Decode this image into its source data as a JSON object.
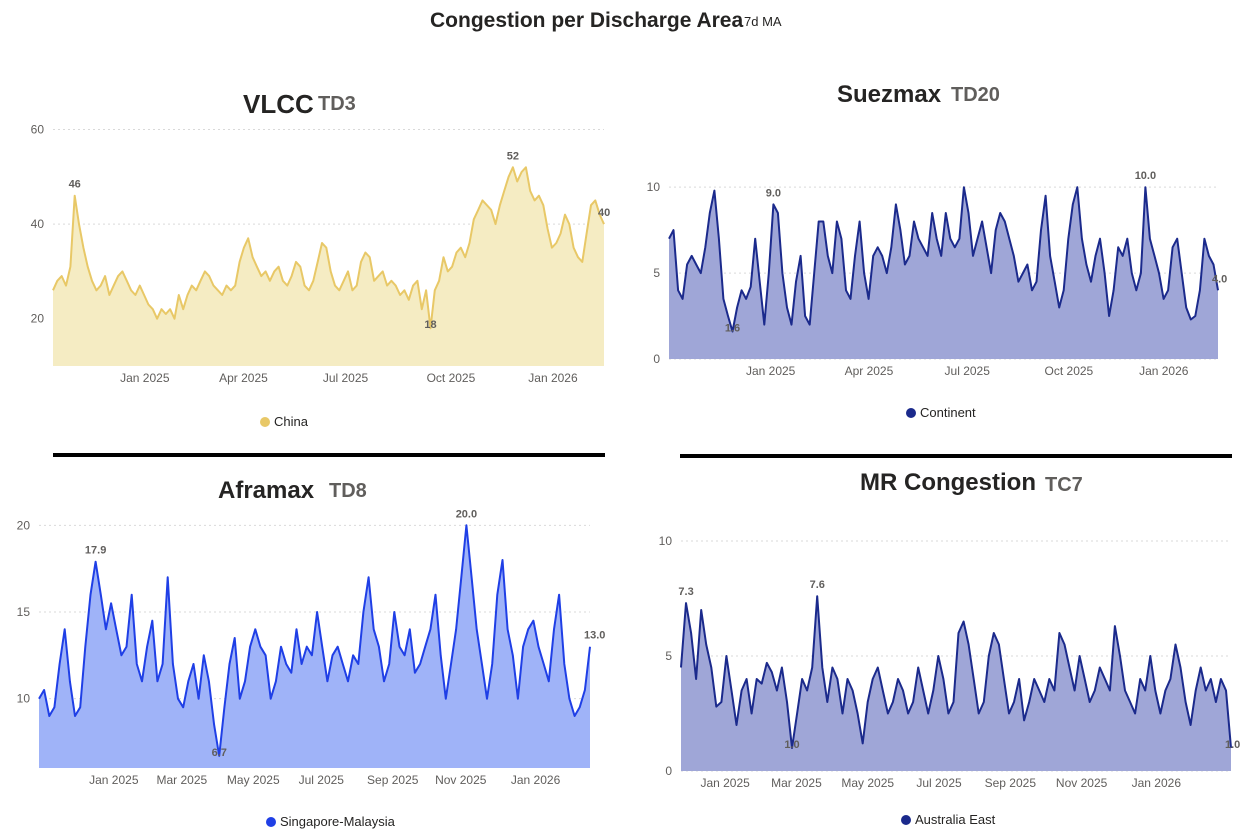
{
  "header": {
    "title": "Congestion per Discharge Area",
    "subtitle": "7d MA"
  },
  "chart_data": [
    {
      "id": "vlcc",
      "type": "area",
      "title": "VLCC",
      "code": "TD3",
      "series_name": "China",
      "color": "#e8c867",
      "fill": "#f5ecc3",
      "ylim": [
        10,
        62
      ],
      "yticks": [
        20,
        40,
        60
      ],
      "xlim": [
        0,
        16.2
      ],
      "xticks": [
        {
          "x": 2.7,
          "label": "Jan 2025"
        },
        {
          "x": 5.6,
          "label": "Apr 2025"
        },
        {
          "x": 8.6,
          "label": "Jul 2025"
        },
        {
          "x": 11.7,
          "label": "Oct 2025"
        },
        {
          "x": 14.7,
          "label": "Jan 2026"
        }
      ],
      "values": [
        26,
        28,
        29,
        27,
        31,
        46,
        40,
        35,
        31,
        28,
        26,
        27,
        29,
        25,
        27,
        29,
        30,
        28,
        26,
        25,
        27,
        25,
        23,
        22,
        20,
        22,
        21,
        22,
        20,
        25,
        22,
        25,
        27,
        26,
        28,
        30,
        29,
        27,
        26,
        25,
        27,
        26,
        27,
        32,
        35,
        37,
        33,
        31,
        29,
        30,
        28,
        30,
        31,
        28,
        27,
        29,
        32,
        31,
        27,
        26,
        28,
        32,
        36,
        35,
        30,
        27,
        26,
        28,
        30,
        26,
        27,
        32,
        34,
        33,
        28,
        29,
        30,
        27,
        28,
        27,
        25,
        26,
        24,
        27,
        28,
        22,
        26,
        18,
        26,
        28,
        33,
        30,
        31,
        34,
        35,
        33,
        36,
        41,
        43,
        45,
        44,
        43,
        40,
        44,
        47,
        50,
        52,
        49,
        51,
        52,
        47,
        45,
        46,
        44,
        39,
        35,
        36,
        38,
        42,
        40,
        35,
        33,
        32,
        38,
        44,
        45,
        42,
        40
      ],
      "annotations": [
        {
          "i": 5,
          "label": "46"
        },
        {
          "i": 87,
          "label": "18"
        },
        {
          "i": 106,
          "label": "52"
        },
        {
          "i": 127,
          "label": "40"
        }
      ]
    },
    {
      "id": "suezmax",
      "type": "area",
      "title": "Suezmax",
      "code": "TD20",
      "series_name": "Continent",
      "color": "#1b2a8c",
      "fill": "#9fa6d7",
      "ylim": [
        0,
        11
      ],
      "yticks": [
        0,
        5,
        10
      ],
      "xlim": [
        0,
        16.2
      ],
      "xticks": [
        {
          "x": 3.0,
          "label": "Jan 2025"
        },
        {
          "x": 5.9,
          "label": "Apr 2025"
        },
        {
          "x": 8.8,
          "label": "Jul 2025"
        },
        {
          "x": 11.8,
          "label": "Oct 2025"
        },
        {
          "x": 14.6,
          "label": "Jan 2026"
        }
      ],
      "values": [
        7.0,
        7.5,
        4.0,
        3.5,
        5.5,
        6.0,
        5.5,
        5.0,
        6.5,
        8.5,
        9.8,
        7.0,
        3.5,
        2.5,
        1.6,
        3.0,
        4.0,
        3.5,
        4.2,
        7.0,
        4.5,
        2.0,
        5.0,
        9.0,
        8.5,
        5.0,
        3.0,
        2.0,
        4.5,
        6.0,
        2.5,
        2.0,
        5.0,
        8.0,
        8.0,
        6.0,
        5.0,
        8.0,
        7.0,
        4.0,
        3.5,
        6.0,
        8.0,
        5.0,
        3.5,
        6.0,
        6.5,
        6.0,
        5.0,
        6.5,
        9.0,
        7.5,
        5.5,
        6.0,
        8.0,
        7.0,
        6.5,
        6.0,
        8.5,
        7.0,
        6.0,
        8.5,
        7.0,
        6.5,
        7.0,
        10.0,
        8.5,
        6.0,
        7.0,
        8.0,
        6.5,
        5.0,
        7.5,
        8.5,
        8.0,
        7.0,
        6.0,
        4.5,
        5.0,
        5.5,
        4.0,
        4.5,
        7.5,
        9.5,
        6.0,
        4.5,
        3.0,
        4.0,
        7.0,
        9.0,
        10.0,
        7.0,
        5.5,
        4.5,
        6.0,
        7.0,
        5.0,
        2.5,
        4.0,
        6.5,
        6.0,
        7.0,
        5.0,
        4.0,
        5.0,
        10.0,
        7.0,
        6.0,
        5.0,
        3.5,
        4.0,
        6.5,
        7.0,
        5.0,
        3.0,
        2.3,
        2.5,
        4.0,
        7.0,
        6.0,
        5.5,
        4.0
      ],
      "annotations": [
        {
          "i": 14,
          "label": "1.6"
        },
        {
          "i": 23,
          "label": "9.0"
        },
        {
          "i": 105,
          "label": "10.0"
        },
        {
          "i": 121,
          "label": "4.0"
        }
      ]
    },
    {
      "id": "aframax",
      "type": "area",
      "title": "Aframax",
      "code": "TD8",
      "series_name": "Singapore-Malaysia",
      "color": "#1f3fe6",
      "fill": "#9fb3f8",
      "ylim": [
        6,
        21
      ],
      "yticks": [
        10,
        15,
        20
      ],
      "xlim": [
        0,
        16.2
      ],
      "xticks": [
        {
          "x": 2.2,
          "label": "Jan 2025"
        },
        {
          "x": 4.2,
          "label": "Mar 2025"
        },
        {
          "x": 6.3,
          "label": "May 2025"
        },
        {
          "x": 8.3,
          "label": "Jul 2025"
        },
        {
          "x": 10.4,
          "label": "Sep 2025"
        },
        {
          "x": 12.4,
          "label": "Nov 2025"
        },
        {
          "x": 14.6,
          "label": "Jan 2026"
        }
      ],
      "values": [
        10,
        10.5,
        9,
        9.5,
        12,
        14,
        11,
        9,
        9.5,
        13,
        16,
        17.9,
        16,
        14,
        15.5,
        14,
        12.5,
        13,
        16,
        12,
        11,
        13,
        14.5,
        11,
        12,
        17,
        12,
        10,
        9.5,
        11,
        12,
        10,
        12.5,
        11,
        8.5,
        6.7,
        9.5,
        12,
        13.5,
        10,
        11,
        13,
        14,
        13,
        12.5,
        10,
        11,
        13,
        12,
        11.5,
        14,
        12,
        13,
        12.5,
        15,
        13,
        11,
        12.5,
        13,
        12,
        11,
        12.5,
        12,
        15,
        17,
        14,
        13,
        11,
        12,
        15,
        13,
        12.5,
        14,
        11.5,
        12,
        13,
        14,
        16,
        12.5,
        10,
        12,
        14,
        17,
        20,
        17,
        14,
        12,
        10,
        12,
        16,
        18,
        14,
        12.5,
        10,
        13,
        14,
        14.5,
        13,
        12,
        11,
        14,
        16,
        12,
        10,
        9,
        9.5,
        10.5,
        13
      ],
      "annotations": [
        {
          "i": 11,
          "label": "17.9"
        },
        {
          "i": 35,
          "label": "6.7"
        },
        {
          "i": 83,
          "label": "20.0"
        },
        {
          "i": 107,
          "label": "13.0"
        }
      ]
    },
    {
      "id": "mr",
      "type": "area",
      "title": "MR Congestion",
      "code": "TC7",
      "series_name": "Australia East",
      "color": "#1b2a8c",
      "fill": "#9fa6d7",
      "ylim": [
        0,
        11
      ],
      "yticks": [
        0,
        5,
        10
      ],
      "xlim": [
        0,
        16.2
      ],
      "xticks": [
        {
          "x": 1.3,
          "label": "Jan 2025"
        },
        {
          "x": 3.4,
          "label": "Mar 2025"
        },
        {
          "x": 5.5,
          "label": "May 2025"
        },
        {
          "x": 7.6,
          "label": "Jul 2025"
        },
        {
          "x": 9.7,
          "label": "Sep 2025"
        },
        {
          "x": 11.8,
          "label": "Nov 2025"
        },
        {
          "x": 14.0,
          "label": "Jan 2026"
        }
      ],
      "values": [
        4.5,
        7.3,
        6.0,
        4.0,
        7.0,
        5.5,
        4.5,
        2.8,
        3.0,
        5.0,
        3.5,
        2.0,
        3.5,
        4.0,
        2.5,
        4.0,
        3.8,
        4.7,
        4.3,
        3.5,
        4.5,
        3.0,
        1.0,
        2.5,
        4.0,
        3.5,
        4.5,
        7.6,
        4.5,
        3.0,
        4.5,
        4.0,
        2.5,
        4.0,
        3.5,
        2.5,
        1.2,
        3.0,
        4.0,
        4.5,
        3.5,
        2.5,
        3.0,
        4.0,
        3.5,
        2.5,
        3.0,
        4.5,
        3.5,
        2.5,
        3.5,
        5.0,
        4.0,
        2.5,
        3.0,
        6.0,
        6.5,
        5.5,
        4.0,
        2.5,
        3.0,
        5.0,
        6.0,
        5.5,
        4.0,
        2.5,
        3.0,
        4.0,
        2.2,
        3.0,
        4.0,
        3.5,
        3.0,
        4.0,
        3.5,
        6.0,
        5.5,
        4.5,
        3.5,
        5.0,
        4.0,
        3.0,
        3.5,
        4.5,
        4.0,
        3.5,
        6.3,
        5.0,
        3.5,
        3.0,
        2.5,
        4.0,
        3.5,
        5.0,
        3.5,
        2.5,
        3.5,
        4.0,
        5.5,
        4.5,
        3.0,
        2.0,
        3.5,
        4.5,
        3.5,
        4.0,
        3.0,
        4.0,
        3.5,
        1.0
      ],
      "annotations": [
        {
          "i": 1,
          "label": "7.3"
        },
        {
          "i": 22,
          "label": "1.0"
        },
        {
          "i": 27,
          "label": "7.6"
        },
        {
          "i": 109,
          "label": "1.0"
        }
      ]
    }
  ]
}
